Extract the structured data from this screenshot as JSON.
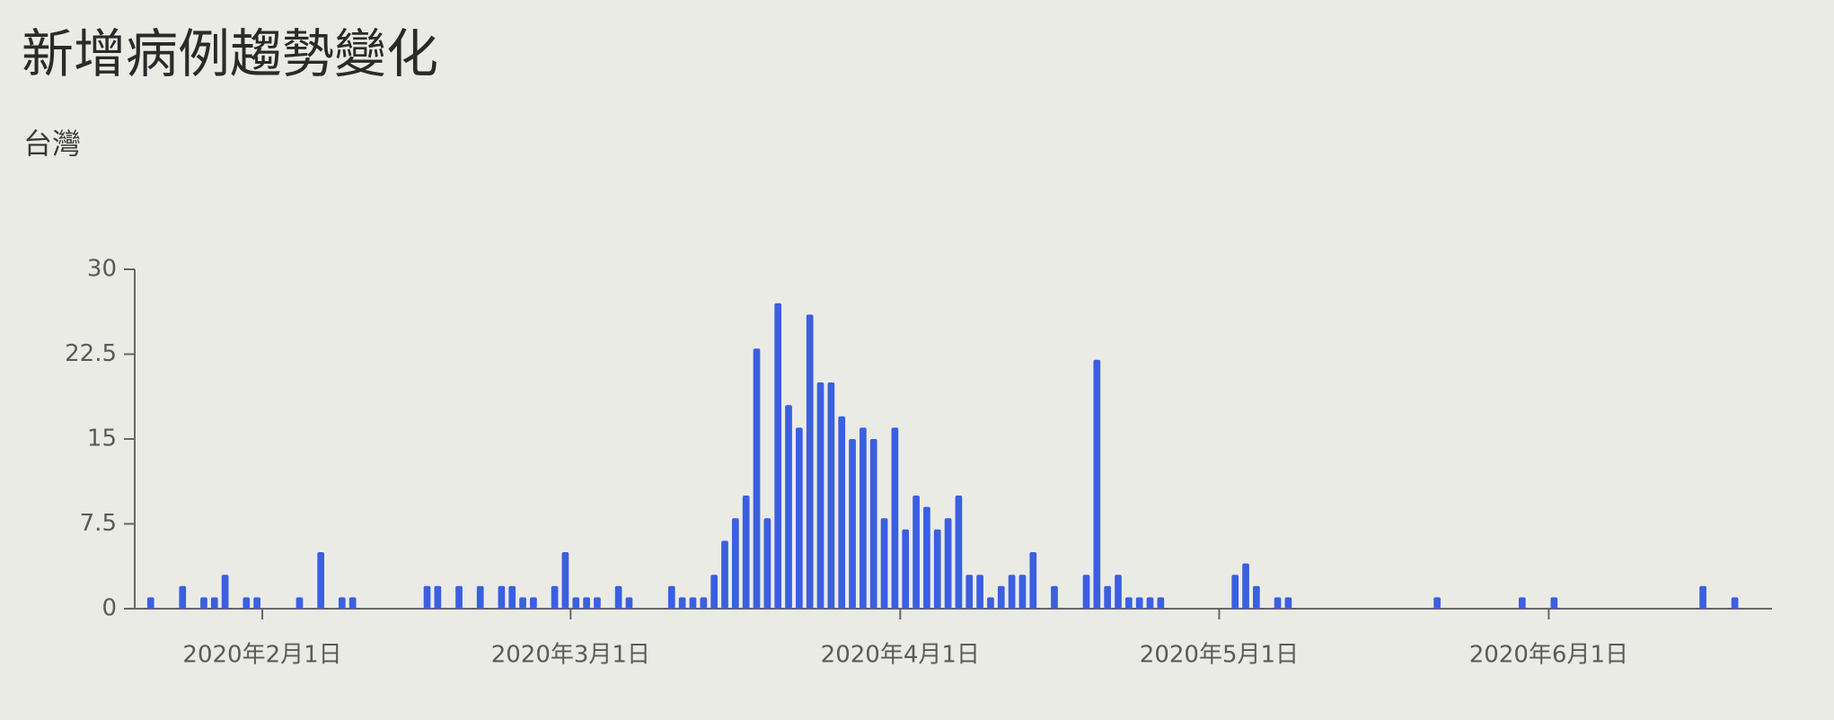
{
  "chart_data": {
    "type": "bar",
    "title": "新增病例趨勢變化",
    "subtitle": "台灣",
    "color": "#3a5fe0",
    "x": [
      "2020-01-21",
      "2020-01-24",
      "2020-01-26",
      "2020-01-27",
      "2020-01-28",
      "2020-01-30",
      "2020-01-31",
      "2020-02-04",
      "2020-02-06",
      "2020-02-08",
      "2020-02-09",
      "2020-02-16",
      "2020-02-17",
      "2020-02-19",
      "2020-02-21",
      "2020-02-23",
      "2020-02-24",
      "2020-02-25",
      "2020-02-26",
      "2020-02-28",
      "2020-02-29",
      "2020-03-01",
      "2020-03-02",
      "2020-03-03",
      "2020-03-05",
      "2020-03-06",
      "2020-03-10",
      "2020-03-11",
      "2020-03-12",
      "2020-03-13",
      "2020-03-14",
      "2020-03-15",
      "2020-03-16",
      "2020-03-17",
      "2020-03-18",
      "2020-03-19",
      "2020-03-20",
      "2020-03-21",
      "2020-03-22",
      "2020-03-23",
      "2020-03-24",
      "2020-03-25",
      "2020-03-26",
      "2020-03-27",
      "2020-03-28",
      "2020-03-29",
      "2020-03-30",
      "2020-03-31",
      "2020-04-01",
      "2020-04-02",
      "2020-04-03",
      "2020-04-04",
      "2020-04-05",
      "2020-04-06",
      "2020-04-07",
      "2020-04-08",
      "2020-04-09",
      "2020-04-10",
      "2020-04-11",
      "2020-04-12",
      "2020-04-13",
      "2020-04-15",
      "2020-04-18",
      "2020-04-19",
      "2020-04-20",
      "2020-04-21",
      "2020-04-22",
      "2020-04-23",
      "2020-04-24",
      "2020-04-25",
      "2020-05-02",
      "2020-05-03",
      "2020-05-04",
      "2020-05-06",
      "2020-05-07",
      "2020-05-21",
      "2020-05-29",
      "2020-06-01",
      "2020-06-15",
      "2020-06-18"
    ],
    "values": [
      1,
      2,
      1,
      1,
      3,
      1,
      1,
      1,
      5,
      1,
      1,
      2,
      2,
      2,
      2,
      2,
      2,
      1,
      1,
      2,
      5,
      1,
      1,
      1,
      2,
      1,
      2,
      1,
      1,
      1,
      3,
      6,
      8,
      10,
      23,
      8,
      27,
      18,
      16,
      26,
      20,
      20,
      17,
      15,
      16,
      15,
      8,
      16,
      7,
      10,
      9,
      7,
      8,
      10,
      3,
      3,
      1,
      2,
      3,
      3,
      5,
      2,
      3,
      22,
      2,
      3,
      1,
      1,
      1,
      1,
      3,
      4,
      2,
      1,
      1,
      1,
      1,
      1,
      2,
      1
    ],
    "xlim": [
      "2020-01-20",
      "2020-06-22"
    ],
    "xticks": [
      {
        "value": "2020-02-01",
        "label": "2020年2月1日"
      },
      {
        "value": "2020-03-01",
        "label": "2020年3月1日"
      },
      {
        "value": "2020-04-01",
        "label": "2020年4月1日"
      },
      {
        "value": "2020-05-01",
        "label": "2020年5月1日"
      },
      {
        "value": "2020-06-01",
        "label": "2020年6月1日"
      }
    ],
    "ylim": [
      0,
      30
    ],
    "yticks": [
      0,
      7.5,
      15,
      22.5,
      30
    ]
  }
}
